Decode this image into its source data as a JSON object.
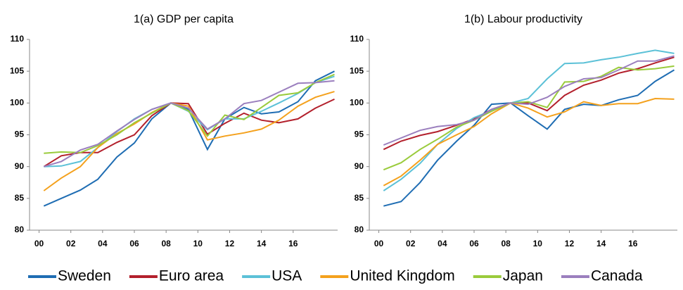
{
  "chart_data": [
    {
      "type": "line",
      "title": "1(a) GDP per capita",
      "x": [
        0.3,
        1.4,
        2.6,
        3.7,
        4.9,
        6.0,
        7.1,
        8.3,
        9.4,
        10.6,
        11.7,
        12.9,
        14.0,
        15.1,
        16.3,
        17.4,
        18.6
      ],
      "xlim": [
        -0.6,
        18.8
      ],
      "xticks": [
        {
          "value": 0,
          "label": "00"
        },
        {
          "value": 2,
          "label": "02"
        },
        {
          "value": 4,
          "label": "04"
        },
        {
          "value": 6,
          "label": "06"
        },
        {
          "value": 8,
          "label": "08"
        },
        10,
        12,
        14,
        16
      ],
      "ylim": [
        80,
        110
      ],
      "yticks": [
        80,
        85,
        90,
        95,
        100,
        105,
        110
      ],
      "grid": false,
      "series": [
        {
          "name": "Sweden",
          "color": "#1f6db3",
          "values": [
            83.8,
            85,
            86.3,
            88,
            91.5,
            93.7,
            97.5,
            100,
            99,
            92.7,
            97.5,
            99.3,
            98.3,
            98.6,
            100.2,
            103.5,
            105
          ]
        },
        {
          "name": "Euro area",
          "color": "#b3202c",
          "values": [
            90,
            91.7,
            92.2,
            92.2,
            93.8,
            95,
            98,
            100,
            99.9,
            95.1,
            96.8,
            98.4,
            97.3,
            96.9,
            97.5,
            99.2,
            100.6
          ]
        },
        {
          "name": "USA",
          "color": "#5cc1d7",
          "values": [
            90,
            90.1,
            90.8,
            93,
            95.5,
            97.5,
            99,
            100,
            98.7,
            95.8,
            97.5,
            97.5,
            98.7,
            100,
            101.5,
            103.2,
            104.2
          ]
        },
        {
          "name": "United Kingdom",
          "color": "#f4a11d",
          "values": [
            86.2,
            88.2,
            90,
            93,
            95.2,
            96.7,
            98.5,
            100,
            99.5,
            94.2,
            94.8,
            95.3,
            95.9,
            97.3,
            99.5,
            100.9,
            101.8
          ]
        },
        {
          "name": "Japan",
          "color": "#9acb3c",
          "values": [
            92.1,
            92.3,
            92.2,
            93.3,
            95,
            96.9,
            98.4,
            100,
            98.8,
            94.8,
            98.1,
            97.4,
            99.3,
            101.2,
            101.6,
            103.2,
            104.5
          ]
        },
        {
          "name": "Canada",
          "color": "#9b7fbe",
          "values": [
            90,
            90.8,
            92.6,
            93.5,
            95.6,
            97.4,
            99,
            100,
            99.2,
            95.9,
            97.5,
            99.9,
            100.4,
            101.7,
            103.1,
            103.2,
            103.5
          ]
        }
      ]
    },
    {
      "type": "line",
      "title": "1(b) Labour productivity",
      "x": [
        0.3,
        1.4,
        2.6,
        3.7,
        4.9,
        6.0,
        7.1,
        8.3,
        9.4,
        10.6,
        11.7,
        12.9,
        14.0,
        15.1,
        16.3,
        17.4,
        18.6
      ],
      "xlim": [
        -0.6,
        18.8
      ],
      "xticks": [
        {
          "value": 0,
          "label": "00"
        },
        {
          "value": 2,
          "label": "02"
        },
        {
          "value": 4,
          "label": "04"
        },
        {
          "value": 6,
          "label": "06"
        },
        {
          "value": 8,
          "label": "08"
        },
        10,
        12,
        14,
        16
      ],
      "ylim": [
        80,
        110
      ],
      "yticks": [
        80,
        85,
        90,
        95,
        100,
        105,
        110
      ],
      "grid": false,
      "series": [
        {
          "color": "#1f6db3",
          "values": [
            83.8,
            84.5,
            87.5,
            91,
            94,
            96.5,
            99.8,
            100,
            98,
            95.9,
            99,
            99.8,
            99.6,
            100.5,
            101.2,
            103.4,
            105.2
          ]
        },
        {
          "color": "#b3202c",
          "values": [
            92.7,
            94,
            94.9,
            95.5,
            96.5,
            97.5,
            99,
            100,
            100,
            98.8,
            101.2,
            102.8,
            103.6,
            104.7,
            105.4,
            106.3,
            107.2
          ]
        },
        {
          "color": "#5cc1d7",
          "values": [
            86.2,
            88,
            90.5,
            93.5,
            96,
            97.7,
            98.8,
            100,
            100.7,
            103.8,
            106.2,
            106.3,
            106.8,
            107.2,
            107.8,
            108.3,
            107.8
          ]
        },
        {
          "color": "#f4a11d",
          "values": [
            87,
            88.5,
            91,
            93.5,
            95,
            96.3,
            98.3,
            100,
            99.2,
            97.8,
            98.6,
            100.2,
            99.6,
            99.9,
            99.9,
            100.7,
            100.6
          ]
        },
        {
          "color": "#9acb3c",
          "values": [
            89.5,
            90.6,
            92.7,
            94.3,
            96.2,
            97.3,
            98.7,
            100,
            100.2,
            99.3,
            103.3,
            103.4,
            104.2,
            105.6,
            105.2,
            105.4,
            105.8
          ]
        },
        {
          "color": "#9b7fbe",
          "values": [
            93.4,
            94.5,
            95.7,
            96.3,
            96.6,
            97.3,
            99,
            100,
            99.8,
            100.9,
            102.6,
            103.8,
            104,
            105.2,
            106.6,
            106.6,
            107.4
          ]
        }
      ]
    }
  ]
}
